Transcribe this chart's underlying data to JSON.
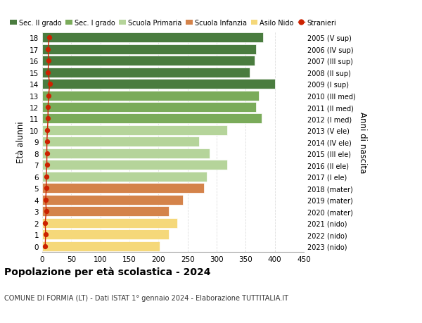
{
  "ages": [
    18,
    17,
    16,
    15,
    14,
    13,
    12,
    11,
    10,
    9,
    8,
    7,
    6,
    5,
    4,
    3,
    2,
    1,
    0
  ],
  "values": [
    380,
    368,
    365,
    357,
    400,
    372,
    368,
    378,
    318,
    270,
    288,
    318,
    283,
    278,
    242,
    218,
    232,
    218,
    202
  ],
  "stranieri": [
    12,
    10,
    11,
    10,
    13,
    11,
    10,
    10,
    9,
    8,
    8,
    8,
    7,
    7,
    6,
    7,
    5,
    6,
    5
  ],
  "right_labels": [
    "2005 (V sup)",
    "2006 (IV sup)",
    "2007 (III sup)",
    "2008 (II sup)",
    "2009 (I sup)",
    "2010 (III med)",
    "2011 (II med)",
    "2012 (I med)",
    "2013 (V ele)",
    "2014 (IV ele)",
    "2015 (III ele)",
    "2016 (II ele)",
    "2017 (I ele)",
    "2018 (mater)",
    "2019 (mater)",
    "2020 (mater)",
    "2021 (nido)",
    "2022 (nido)",
    "2023 (nido)"
  ],
  "bar_colors": [
    "#4a7c3f",
    "#4a7c3f",
    "#4a7c3f",
    "#4a7c3f",
    "#4a7c3f",
    "#7aab5a",
    "#7aab5a",
    "#7aab5a",
    "#b5d49a",
    "#b5d49a",
    "#b5d49a",
    "#b5d49a",
    "#b5d49a",
    "#d4834a",
    "#d4834a",
    "#d4834a",
    "#f5d87a",
    "#f5d87a",
    "#f5d87a"
  ],
  "legend_labels": [
    "Sec. II grado",
    "Sec. I grado",
    "Scuola Primaria",
    "Scuola Infanzia",
    "Asilo Nido",
    "Stranieri"
  ],
  "legend_colors": [
    "#4a7c3f",
    "#7aab5a",
    "#b5d49a",
    "#d4834a",
    "#f5d87a",
    "#cc2200"
  ],
  "stranieri_color": "#cc2200",
  "title": "Popolazione per età scolastica - 2024",
  "subtitle": "COMUNE DI FORMIA (LT) - Dati ISTAT 1° gennaio 2024 - Elaborazione TUTTITALIA.IT",
  "ylabel": "Età alunni",
  "right_ylabel": "Anni di nascita",
  "xlim": [
    0,
    450
  ],
  "xticks": [
    0,
    50,
    100,
    150,
    200,
    250,
    300,
    350,
    400,
    450
  ],
  "background_color": "#ffffff",
  "grid_color": "#dddddd"
}
